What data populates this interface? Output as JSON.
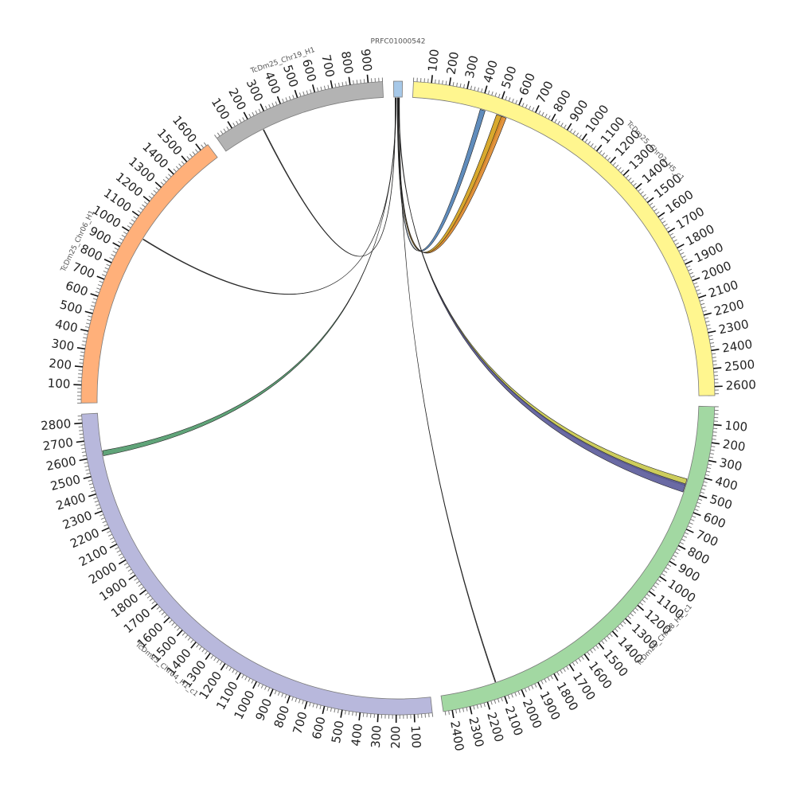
{
  "diagram": {
    "type": "circos",
    "tick_step": 100,
    "segments": [
      {
        "name": "PRFC01000542",
        "length": 20,
        "color": "#a6c8e8",
        "label_ticks": false
      },
      {
        "name": "TcDm25_Chr03_H5_c1",
        "length": 2650,
        "color": "#fff68f",
        "label_ticks": true
      },
      {
        "name": "TcDm25_Chr18_H1_c1",
        "length": 2450,
        "color": "#a2d8a2",
        "label_ticks": true
      },
      {
        "name": "TcDm25_Chr04_H1_c1",
        "length": 2850,
        "color": "#b8b8dc",
        "label_ticks": true
      },
      {
        "name": "TcDm25_Chr06_H1",
        "length": 1650,
        "color": "#ffb07a",
        "label_ticks": true
      },
      {
        "name": "TcDm25_Chr19_H1",
        "length": 980,
        "color": "#b3b3b3",
        "label_ticks": true
      }
    ],
    "links": [
      {
        "from": "PRFC01000542",
        "from_pos": 8,
        "to": "TcDm25_Chr03_H5_c1",
        "to_start": 400,
        "to_end": 430,
        "color": "#4f7fb5"
      },
      {
        "from": "PRFC01000542",
        "from_pos": 9,
        "to": "TcDm25_Chr03_H5_c1",
        "to_start": 500,
        "to_end": 540,
        "color": "#d4a017"
      },
      {
        "from": "PRFC01000542",
        "from_pos": 10,
        "to": "TcDm25_Chr03_H5_c1",
        "to_start": 530,
        "to_end": 560,
        "color": "#e08a2a"
      },
      {
        "from": "PRFC01000542",
        "from_pos": 11,
        "to": "TcDm25_Chr18_H1_c1",
        "to_start": 430,
        "to_end": 470,
        "color": "#c8c84a"
      },
      {
        "from": "PRFC01000542",
        "from_pos": 12,
        "to": "TcDm25_Chr18_H1_c1",
        "to_start": 460,
        "to_end": 510,
        "color": "#5a5a9a"
      },
      {
        "from": "PRFC01000542",
        "from_pos": 13,
        "to": "TcDm25_Chr18_H1_c1",
        "to_start": 2120,
        "to_end": 2125,
        "color": "#333333"
      },
      {
        "from": "PRFC01000542",
        "from_pos": 5,
        "to": "TcDm25_Chr04_H1_c1",
        "to_start": 2600,
        "to_end": 2630,
        "color": "#4f9a6a"
      },
      {
        "from": "PRFC01000542",
        "from_pos": 4,
        "to": "TcDm25_Chr06_H1",
        "to_start": 1000,
        "to_end": 1005,
        "color": "#333333"
      },
      {
        "from": "PRFC01000542",
        "from_pos": 3,
        "to": "TcDm25_Chr19_H1",
        "to_start": 250,
        "to_end": 255,
        "color": "#333333"
      }
    ]
  }
}
